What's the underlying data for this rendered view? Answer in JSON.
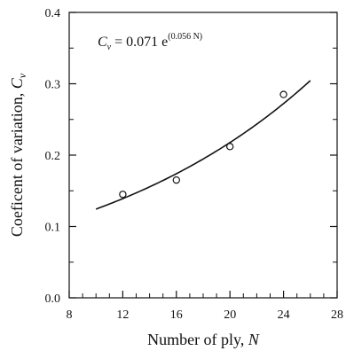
{
  "chart_data": {
    "type": "scatter",
    "title": "",
    "xlabel": "Number of ply, ",
    "xlabel_var": "N",
    "ylabel": "Coeficent of variation, ",
    "ylabel_var": "C",
    "ylabel_sub": "v",
    "xlim": [
      8,
      28
    ],
    "ylim": [
      0.0,
      0.4
    ],
    "x_ticks": [
      8,
      12,
      16,
      20,
      24,
      28
    ],
    "x_tick_labels": [
      "8",
      "12",
      "16",
      "20",
      "24",
      "28"
    ],
    "y_ticks": [
      0.0,
      0.1,
      0.2,
      0.3,
      0.4
    ],
    "y_tick_labels": [
      "0.0",
      "0.1",
      "0.2",
      "0.3",
      "0.4"
    ],
    "grid": false,
    "series": [
      {
        "type": "scatter",
        "marker": "open-circle",
        "x": [
          12,
          16,
          20,
          24
        ],
        "y": [
          0.145,
          0.165,
          0.212,
          0.285
        ]
      },
      {
        "type": "line",
        "model": "exponential",
        "coef": 0.071,
        "rate": 0.056,
        "x_range": [
          10,
          26
        ]
      }
    ],
    "annotation": {
      "var": "C",
      "sub": "v",
      "eq": " = 0.071 e",
      "exponent": "(0.056 N)"
    }
  }
}
